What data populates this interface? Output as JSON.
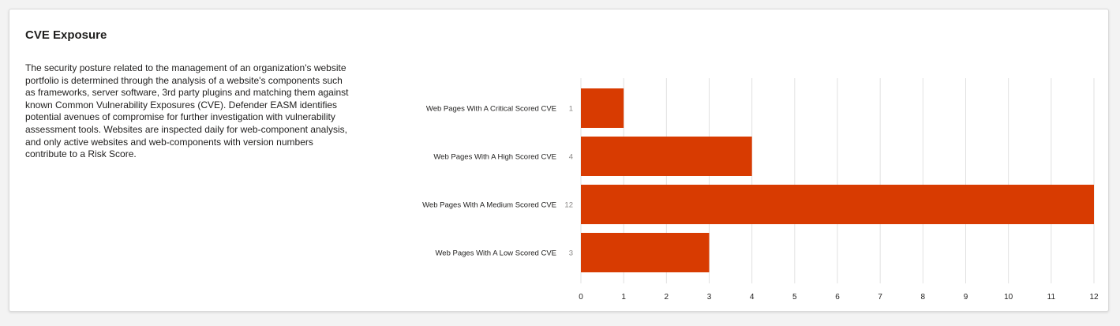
{
  "card": {
    "title": "CVE Exposure",
    "description": "The security posture related to the management of an organization's website portfolio is determined through the analysis of a website's components such as frameworks, server software, 3rd party plugins and matching them against known Common Vulnerability Exposures (CVE). Defender EASM identifies potential avenues of compromise for further investigation with vulnerability assessment tools. Websites are inspected daily for web-component analysis, and only active websites and web-components with version numbers contribute to a Risk Score."
  },
  "chart_data": {
    "type": "bar",
    "orientation": "horizontal",
    "title": "",
    "xlabel": "",
    "ylabel": "",
    "categories": [
      "Web Pages With A Critical Scored CVE",
      "Web Pages With A High Scored CVE",
      "Web Pages With A Medium Scored CVE",
      "Web Pages With A Low Scored CVE"
    ],
    "values": [
      1,
      4,
      12,
      3
    ],
    "xlim": [
      0,
      12
    ],
    "xticks": [
      0,
      1,
      2,
      3,
      4,
      5,
      6,
      7,
      8,
      9,
      10,
      11,
      12
    ],
    "grid": true,
    "legend": "none",
    "bar_color": "#d83b01",
    "grid_color": "#e1e1e1",
    "label_color": "#201f1e",
    "value_label_color": "#8a8886"
  }
}
